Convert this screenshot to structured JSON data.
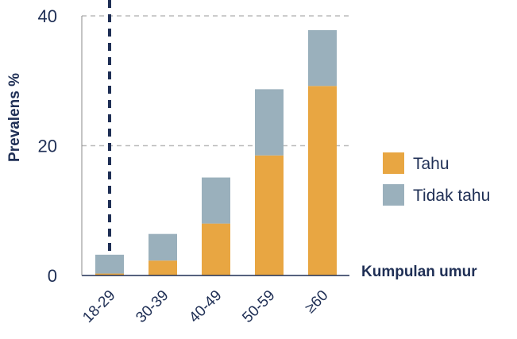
{
  "chart_data": {
    "type": "bar",
    "stacked": true,
    "categories": [
      "18-29",
      "30-39",
      "40-49",
      "50-59",
      "≥60"
    ],
    "series": [
      {
        "name": "Tahu",
        "color": "#E8A642",
        "values": [
          0.3,
          2.3,
          8.0,
          18.5,
          29.2
        ]
      },
      {
        "name": "Tidak tahu",
        "color": "#9AB0BC",
        "values": [
          2.9,
          4.1,
          7.1,
          10.2,
          8.6
        ]
      }
    ],
    "ylim": [
      0,
      40
    ],
    "yticks": [
      0,
      20,
      40
    ],
    "ylabel": "Prevalens %",
    "xlabel": "Kumpulan umur",
    "grid": "dashed horizontal at 20 and 40",
    "reference_line": {
      "category": "18-29",
      "style": "dashed vertical",
      "color": "#1F2F55"
    },
    "legend_position": "right",
    "axis_color": "#1F2F55",
    "grid_color": "#BBBBBB"
  }
}
